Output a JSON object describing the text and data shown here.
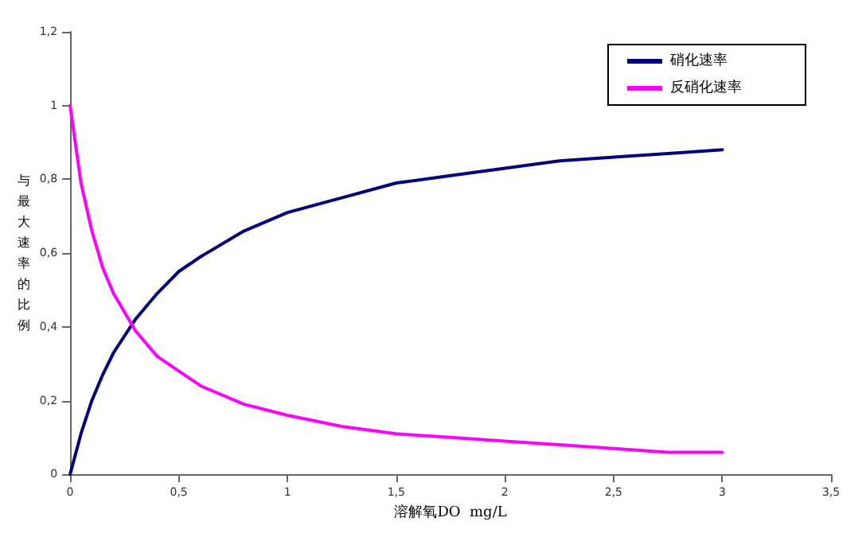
{
  "chart_data": {
    "type": "line",
    "xlabel": "溶解氧DO  mg/L",
    "ylabel": "与最大速率的比例",
    "x": [
      0,
      0.05,
      0.1,
      0.15,
      0.2,
      0.3,
      0.4,
      0.5,
      0.6,
      0.8,
      1,
      1.25,
      1.5,
      1.75,
      2,
      2.25,
      2.5,
      2.75,
      3
    ],
    "series": [
      {
        "name": "硝化速率",
        "color": "#000080",
        "values": [
          0,
          0.11,
          0.2,
          0.27,
          0.33,
          0.42,
          0.49,
          0.55,
          0.59,
          0.66,
          0.71,
          0.75,
          0.79,
          0.81,
          0.83,
          0.85,
          0.86,
          0.87,
          0.88
        ]
      },
      {
        "name": "反硝化速率",
        "color": "#ff00ff",
        "values": [
          1,
          0.79,
          0.66,
          0.56,
          0.49,
          0.39,
          0.32,
          0.28,
          0.24,
          0.19,
          0.16,
          0.13,
          0.11,
          0.1,
          0.09,
          0.08,
          0.07,
          0.06,
          0.06
        ]
      }
    ],
    "xlim": [
      0,
      3.5
    ],
    "xticks": [
      0,
      {
        "value": 0.5,
        "label": "0,5"
      },
      1,
      {
        "value": 1.5,
        "label": "1,5"
      },
      2,
      {
        "value": 2.5,
        "label": "2,5"
      },
      3,
      {
        "value": 3.5,
        "label": "3,5"
      }
    ],
    "ylim": [
      0,
      1.2
    ],
    "yticks": [
      0,
      {
        "value": 0.2,
        "label": "0,2"
      },
      {
        "value": 0.4,
        "label": "0,4"
      },
      {
        "value": 0.6,
        "label": "0,6"
      },
      {
        "value": 0.8,
        "label": "0,8"
      },
      1,
      {
        "value": 1.2,
        "label": "1,2"
      }
    ],
    "grid": false,
    "legend": "top right",
    "marker": "none",
    "line_style": "solid"
  }
}
